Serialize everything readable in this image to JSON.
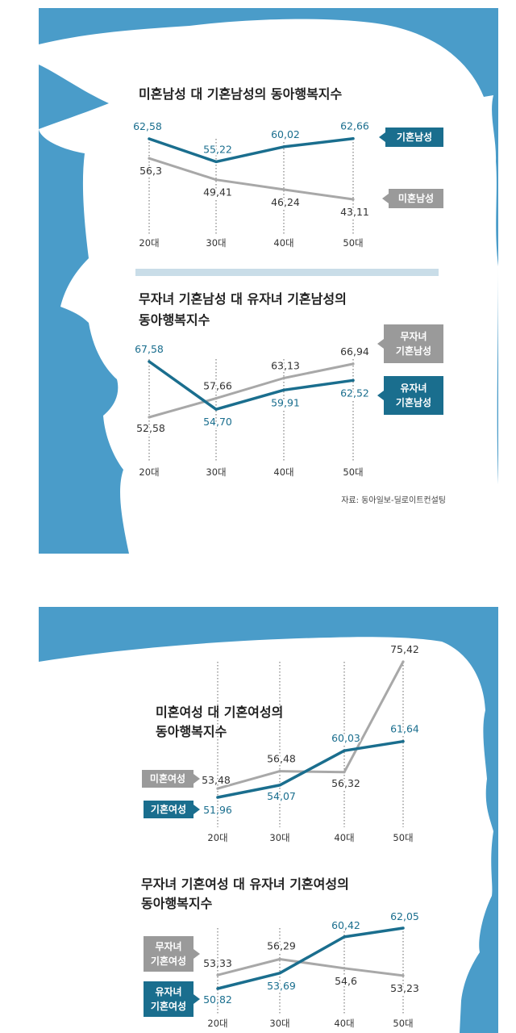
{
  "colors": {
    "background": "#4a9cc9",
    "silhouette": "#ffffff",
    "married": "#1a6e8e",
    "other": "#a8a8a8",
    "gray_tag": "#9a9a9a"
  },
  "source": "자료: 동아일보-딜로이트컨설팅",
  "chart_data": [
    {
      "type": "line",
      "title": "미혼남성 대 기혼남성의 동아행복지수",
      "categories": [
        "20대",
        "30대",
        "40대",
        "50대"
      ],
      "series": [
        {
          "name": "기혼남성",
          "values": [
            62.58,
            55.22,
            60.02,
            62.66
          ],
          "value_labels": [
            "62,58",
            "55,22",
            "60,02",
            "62,66"
          ]
        },
        {
          "name": "미혼남성",
          "values": [
            56.3,
            49.41,
            46.24,
            43.11
          ],
          "value_labels": [
            "56,3",
            "49,41",
            "46,24",
            "43,11"
          ]
        }
      ]
    },
    {
      "type": "line",
      "title": "무자녀 기혼남성 대 유자녀 기혼남성의 동아행복지수",
      "title_lines": [
        "무자녀 기혼남성 대 유자녀 기혼남성의",
        "동아행복지수"
      ],
      "categories": [
        "20대",
        "30대",
        "40대",
        "50대"
      ],
      "series": [
        {
          "name": "무자녀 기혼남성",
          "name_lines": [
            "무자녀",
            "기혼남성"
          ],
          "values": [
            52.58,
            57.66,
            63.13,
            66.94
          ],
          "value_labels": [
            "52,58",
            "57,66",
            "63,13",
            "66,94"
          ]
        },
        {
          "name": "유자녀 기혼남성",
          "name_lines": [
            "유자녀",
            "기혼남성"
          ],
          "values": [
            67.58,
            54.7,
            59.91,
            62.52
          ],
          "value_labels": [
            "67,58",
            "54,70",
            "59,91",
            "62,52"
          ]
        }
      ]
    },
    {
      "type": "line",
      "title": "미혼여성 대 기혼여성의 동아행복지수",
      "title_lines": [
        "미혼여성 대 기혼여성의",
        "동아행복지수"
      ],
      "categories": [
        "20대",
        "30대",
        "40대",
        "50대"
      ],
      "series": [
        {
          "name": "미혼여성",
          "values": [
            53.48,
            56.48,
            56.32,
            75.42
          ],
          "value_labels": [
            "53,48",
            "56,48",
            "56,32",
            "75,42"
          ]
        },
        {
          "name": "기혼여성",
          "values": [
            51.96,
            54.07,
            60.03,
            61.64
          ],
          "value_labels": [
            "51,96",
            "54,07",
            "60,03",
            "61,64"
          ]
        }
      ]
    },
    {
      "type": "line",
      "title": "무자녀 기혼여성 대 유자녀 기혼여성의 동아행복지수",
      "title_lines": [
        "무자녀 기혼여성 대 유자녀 기혼여성의",
        "동아행복지수"
      ],
      "categories": [
        "20대",
        "30대",
        "40대",
        "50대"
      ],
      "series": [
        {
          "name": "무자녀 기혼여성",
          "name_lines": [
            "무자녀",
            "기혼여성"
          ],
          "values": [
            53.33,
            56.29,
            54.6,
            53.23
          ],
          "value_labels": [
            "53,33",
            "56,29",
            "54,6",
            "53,23"
          ]
        },
        {
          "name": "유자녀 기혼여성",
          "name_lines": [
            "유자녀",
            "기혼여성"
          ],
          "values": [
            50.82,
            53.69,
            60.42,
            62.05
          ],
          "value_labels": [
            "50,82",
            "53,69",
            "60,42",
            "62,05"
          ]
        }
      ]
    }
  ]
}
